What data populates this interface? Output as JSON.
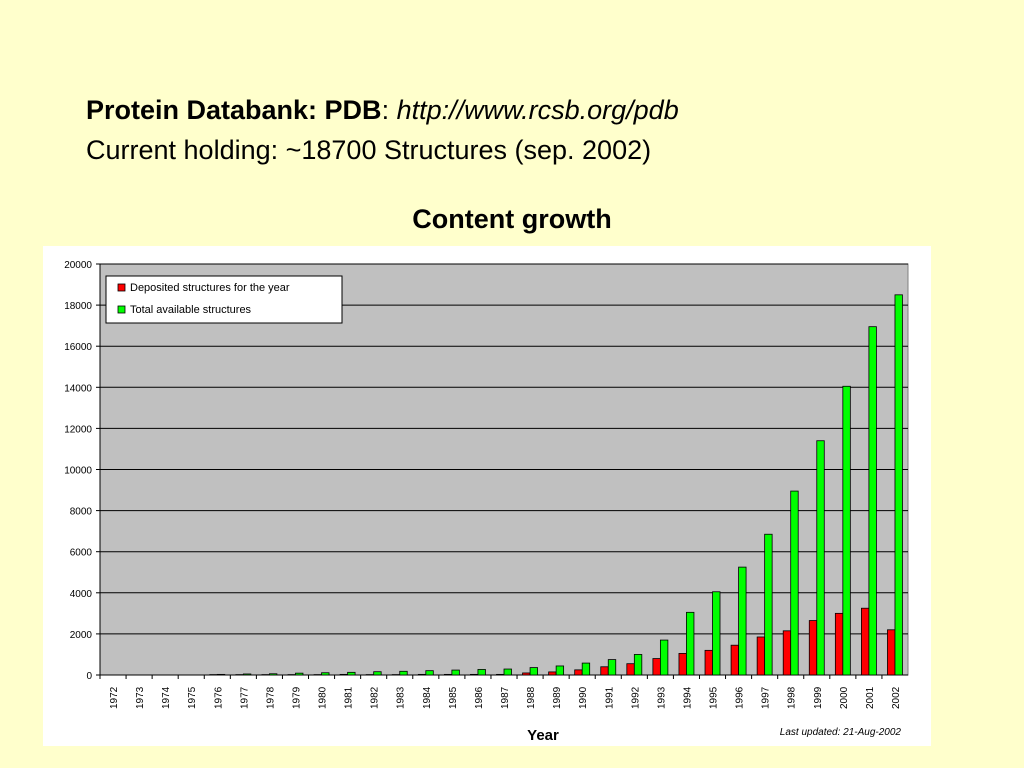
{
  "heading": {
    "title_bold": "Protein Databank: PDB",
    "title_sep": ": ",
    "title_url": "http://www.rcsb.org/pdb",
    "line2": "Current holding: ~18700 Structures (sep. 2002)"
  },
  "chart_data": {
    "type": "bar",
    "title": "Content growth",
    "xlabel": "Year",
    "ylabel": "",
    "ylim": [
      0,
      20000
    ],
    "yticks": [
      0,
      2000,
      4000,
      6000,
      8000,
      10000,
      12000,
      14000,
      16000,
      18000,
      20000
    ],
    "grid": true,
    "legend_position": "top-left",
    "footnote": "Last updated: 21-Aug-2002",
    "categories": [
      "1972",
      "1973",
      "1974",
      "1975",
      "1976",
      "1977",
      "1978",
      "1979",
      "1980",
      "1981",
      "1982",
      "1983",
      "1984",
      "1985",
      "1986",
      "1987",
      "1988",
      "1989",
      "1990",
      "1991",
      "1992",
      "1993",
      "1994",
      "1995",
      "1996",
      "1997",
      "1998",
      "1999",
      "2000",
      "2001",
      "2002"
    ],
    "series": [
      {
        "name": "Deposited structures for the year",
        "color": "#ff0000",
        "values": [
          1,
          1,
          1,
          1,
          20,
          20,
          20,
          20,
          20,
          30,
          20,
          20,
          30,
          30,
          30,
          30,
          100,
          150,
          250,
          400,
          550,
          800,
          1050,
          1200,
          1450,
          1850,
          2150,
          2650,
          3000,
          3250,
          2200
        ]
      },
      {
        "name": "Total available structures",
        "color": "#00ff00",
        "values": [
          1,
          1,
          1,
          1,
          30,
          50,
          60,
          90,
          110,
          130,
          160,
          180,
          210,
          240,
          270,
          290,
          360,
          440,
          580,
          750,
          1000,
          1700,
          3050,
          4050,
          5250,
          6850,
          8950,
          11400,
          14050,
          16950,
          18500
        ]
      }
    ]
  }
}
